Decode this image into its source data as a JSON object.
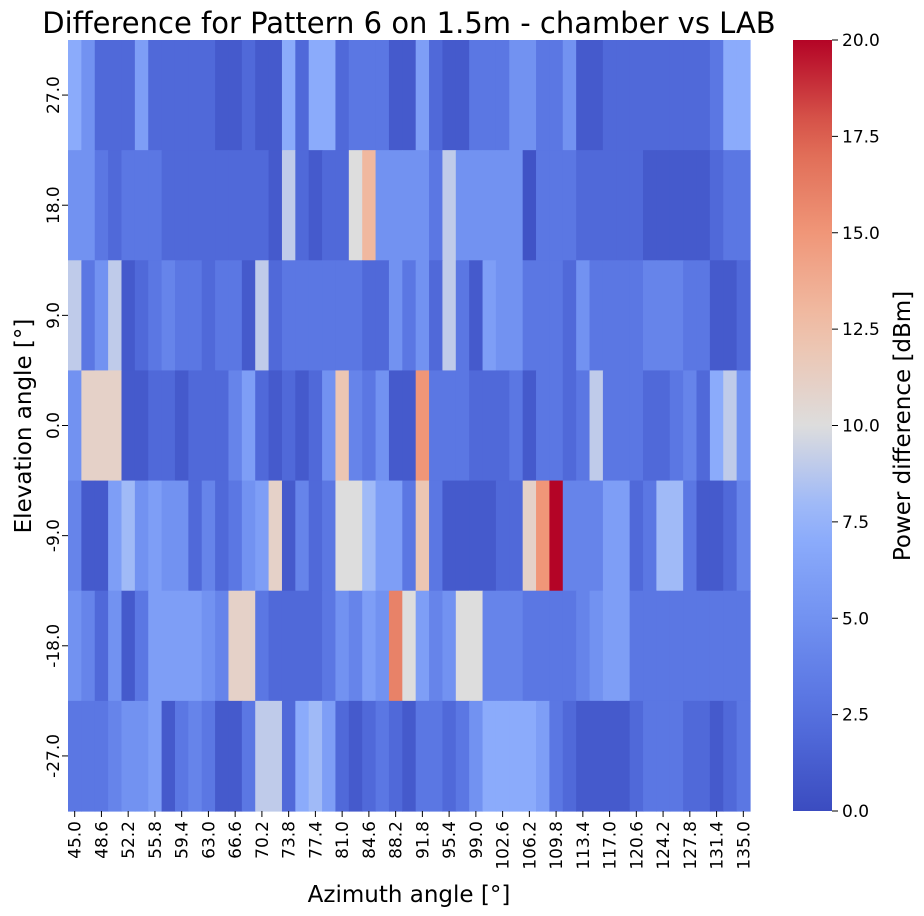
{
  "chart_data": {
    "type": "heatmap",
    "title": "Difference for Pattern 6 on 1.5m - chamber vs LAB",
    "xlabel": "Azimuth angle [°]",
    "ylabel": "Elevation angle [°]",
    "x": [
      45.0,
      46.8,
      48.6,
      50.4,
      52.2,
      54.0,
      55.8,
      57.6,
      59.4,
      61.2,
      63.0,
      64.8,
      66.6,
      68.4,
      70.2,
      72.0,
      73.8,
      75.6,
      77.4,
      79.2,
      81.0,
      82.8,
      84.6,
      86.4,
      88.2,
      90.0,
      91.8,
      93.6,
      95.4,
      97.2,
      99.0,
      100.8,
      102.6,
      104.4,
      106.2,
      108.0,
      109.8,
      111.6,
      113.4,
      115.2,
      117.0,
      118.8,
      120.6,
      122.4,
      124.2,
      126.0,
      127.8,
      129.6,
      131.4,
      133.2,
      135.0
    ],
    "x_tick_labels": [
      "45.0",
      "48.6",
      "52.2",
      "55.8",
      "59.4",
      "63.0",
      "66.6",
      "70.2",
      "73.8",
      "77.4",
      "81.0",
      "84.6",
      "88.2",
      "91.8",
      "95.4",
      "99.0",
      "102.6",
      "106.2",
      "109.8",
      "113.4",
      "117.0",
      "120.6",
      "124.2",
      "127.8",
      "131.4",
      "135.0"
    ],
    "y": [
      27.0,
      18.0,
      9.0,
      0.0,
      -9.0,
      -18.0,
      -27.0
    ],
    "y_tick_labels": [
      "27.0",
      "18.0",
      "9.0",
      "0.0",
      "-9.0",
      "-18.0",
      "-27.0"
    ],
    "values": [
      [
        7,
        5,
        2,
        2,
        2,
        6,
        2,
        2,
        2,
        2,
        2,
        1,
        1,
        2,
        1,
        1,
        7,
        2,
        7,
        7,
        2,
        3,
        3,
        3,
        1,
        1,
        6,
        2,
        1,
        1,
        3,
        3,
        3,
        5,
        5,
        3,
        3,
        5,
        1,
        1,
        2,
        2,
        2,
        2,
        2,
        2,
        2,
        2,
        3,
        7,
        7
      ],
      [
        5,
        5,
        3,
        2,
        3,
        3,
        3,
        2,
        2,
        2,
        2,
        2,
        2,
        2,
        2,
        1,
        9,
        2,
        1,
        2,
        2,
        10,
        13,
        5,
        5,
        5,
        5,
        3,
        9,
        5,
        5,
        5,
        5,
        5,
        0.5,
        3,
        3,
        3,
        2,
        2,
        2,
        2,
        2,
        1,
        1,
        1,
        1,
        1,
        2,
        3,
        3
      ],
      [
        9,
        3,
        5,
        9,
        1,
        2,
        3,
        4,
        3,
        3,
        2,
        3,
        3,
        1,
        9,
        2,
        3,
        3,
        3,
        3,
        3,
        3,
        2,
        2,
        5,
        3,
        5,
        2,
        9,
        3,
        1,
        6,
        5,
        5,
        3,
        3,
        3,
        2,
        5,
        3,
        3,
        3,
        3,
        4,
        4,
        4,
        3,
        3,
        1,
        1,
        2
      ],
      [
        5,
        11,
        11,
        11,
        1,
        1,
        2,
        2,
        1,
        2,
        2,
        2,
        4,
        6,
        2,
        1,
        2,
        1,
        2,
        5,
        12,
        4,
        3,
        5,
        1,
        1,
        15,
        3,
        3,
        3,
        2,
        2,
        2,
        3,
        1,
        3,
        3,
        2,
        3,
        9,
        3,
        3,
        3,
        2,
        2,
        3,
        4,
        2,
        7,
        9,
        5
      ],
      [
        4,
        1,
        1,
        6,
        8,
        5,
        6,
        5,
        5,
        2,
        4,
        2,
        3,
        5,
        6,
        11,
        1,
        4,
        2,
        3,
        10,
        10,
        8,
        6,
        6,
        3,
        12,
        3,
        1,
        1,
        1,
        1,
        2,
        2,
        11,
        15,
        20,
        4,
        4,
        4,
        6,
        6,
        2,
        3,
        8,
        8,
        3,
        1,
        1,
        2,
        4
      ],
      [
        5,
        4,
        2,
        5,
        1,
        3,
        6,
        6,
        6,
        6,
        5,
        4,
        11,
        11,
        3,
        2,
        2,
        2,
        2,
        3,
        5,
        4,
        6,
        5,
        16,
        10,
        6,
        4,
        5,
        10,
        10,
        4,
        4,
        4,
        3,
        3,
        3,
        3,
        4,
        5,
        6,
        6,
        3,
        3,
        3,
        3,
        3,
        3,
        3,
        3,
        3
      ],
      [
        3,
        3,
        3,
        4,
        5,
        5,
        6,
        1,
        3,
        4,
        3,
        1,
        1,
        3,
        9,
        9,
        2,
        7,
        8,
        6,
        2,
        1,
        2,
        3,
        2,
        1,
        3,
        3,
        2,
        3,
        5,
        7,
        7,
        7,
        7,
        6,
        3,
        2,
        1,
        1,
        1,
        1,
        2,
        3,
        3,
        3,
        2,
        2,
        1,
        2,
        3
      ]
    ],
    "vmin": 0.0,
    "vmax": 20.0,
    "colormap": "coolwarm",
    "colorbar": {
      "label": "Power difference [dBm]",
      "ticks": [
        0.0,
        2.5,
        5.0,
        7.5,
        10.0,
        12.5,
        15.0,
        17.5,
        20.0
      ],
      "tick_labels": [
        "0.0",
        "2.5",
        "5.0",
        "7.5",
        "10.0",
        "12.5",
        "15.0",
        "17.5",
        "20.0"
      ]
    },
    "grid": false,
    "legend": "colorbar right"
  }
}
